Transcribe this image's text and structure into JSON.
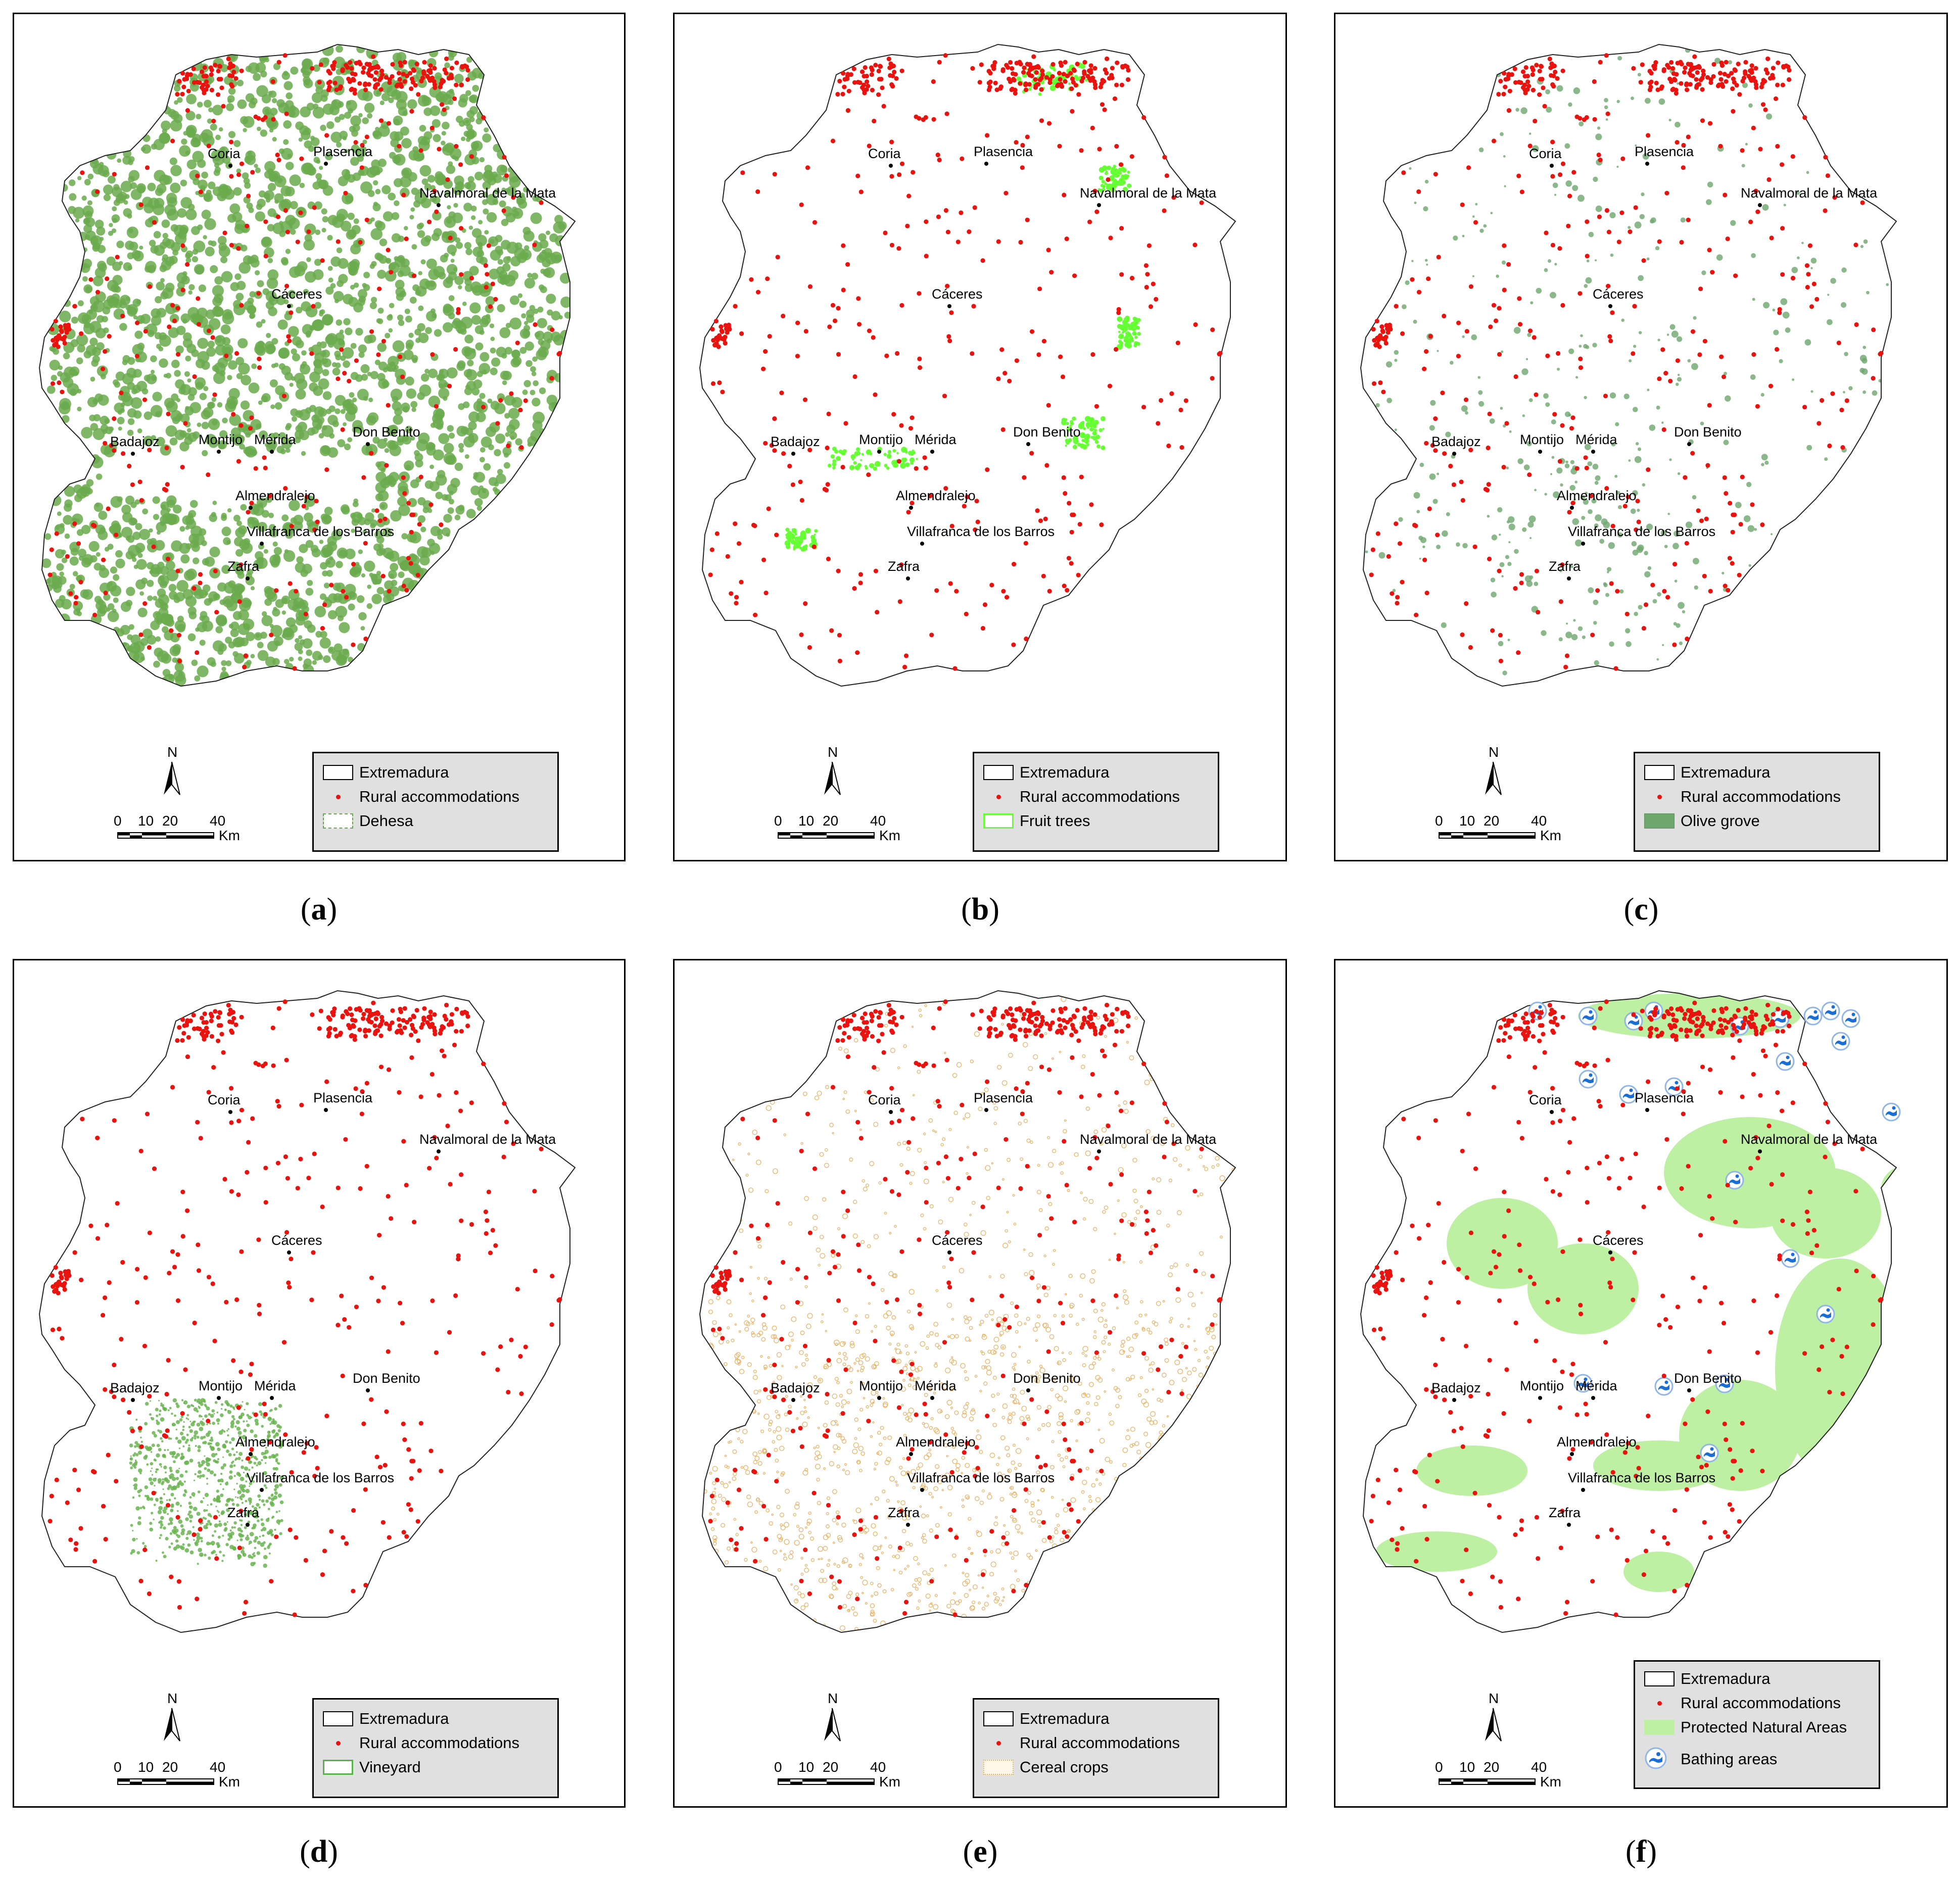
{
  "colors": {
    "accommodation": "#e8130f",
    "dehesa": "#6aaa4c",
    "fruit": "#66ff33",
    "olive": "#6ea66e",
    "vineyard": "#6ab450",
    "cereal": "#e8b060",
    "protected": "#bdf0a3",
    "bathing": "#1a6fd6"
  },
  "common": {
    "legend_boundary": "Extremadura",
    "legend_accommodation": "Rural accommodations",
    "north_label": "N",
    "scale_ticks": [
      "0",
      "10",
      "20",
      "40"
    ],
    "scale_unit": "Km",
    "cities": [
      {
        "name": "Coria"
      },
      {
        "name": "Plasencia"
      },
      {
        "name": "Navalmoral de la Mata"
      },
      {
        "name": "Cáceres"
      },
      {
        "name": "Badajoz"
      },
      {
        "name": "Montijo"
      },
      {
        "name": "Mérida"
      },
      {
        "name": "Don Benito"
      },
      {
        "name": "Almendralejo"
      },
      {
        "name": "Villafranca de los Barros"
      },
      {
        "name": "Zafra"
      }
    ]
  },
  "panels": [
    {
      "id": "a",
      "caption_letter": "a",
      "layer_label": "Dehesa",
      "layer": "dehesa"
    },
    {
      "id": "b",
      "caption_letter": "b",
      "layer_label": "Fruit trees",
      "layer": "fruit"
    },
    {
      "id": "c",
      "caption_letter": "c",
      "layer_label": "Olive grove",
      "layer": "olive"
    },
    {
      "id": "d",
      "caption_letter": "d",
      "layer_label": "Vineyard",
      "layer": "vineyard"
    },
    {
      "id": "e",
      "caption_letter": "e",
      "layer_label": "Cereal crops",
      "layer": "cereal"
    },
    {
      "id": "f",
      "caption_letter": "f",
      "layer_label": "Protected Natural Areas",
      "layer": "protected",
      "extra_label": "Bathing areas"
    }
  ]
}
